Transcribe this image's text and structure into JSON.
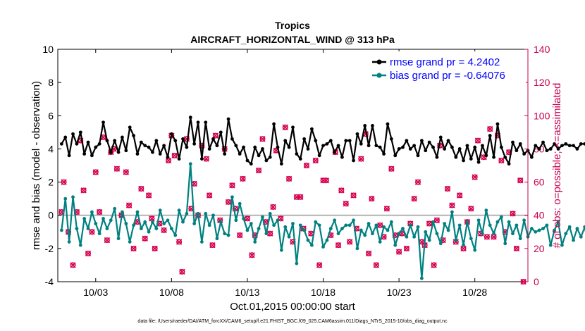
{
  "chart_data": {
    "type": "line",
    "title": "Tropics",
    "subtitle": "AIRCRAFT_HORIZONTAL_WIND @ 313 hPa",
    "xlabel": "Oct.01,2015 00:00:00 start",
    "ylabel": "rmse and bias (model - observation)",
    "y2label": "# of obs: o=possible; ×=assimilated",
    "ylim": [
      -4,
      10
    ],
    "y2lim": [
      0,
      140
    ],
    "xlim": [
      0.5,
      31.5
    ],
    "yticks": [
      "-4",
      "-2",
      "0",
      "2",
      "4",
      "6",
      "8",
      "10"
    ],
    "y2ticks": [
      "0",
      "20",
      "40",
      "60",
      "80",
      "100",
      "120",
      "140"
    ],
    "xticks": [
      {
        "label": "10/03",
        "day": 3
      },
      {
        "label": "10/08",
        "day": 8
      },
      {
        "label": "10/13",
        "day": 13
      },
      {
        "label": "10/18",
        "day": 18
      },
      {
        "label": "10/23",
        "day": 23
      },
      {
        "label": "10/28",
        "day": 28
      }
    ],
    "x_start_day": 0.75,
    "x_step_day": 0.25,
    "zero_line": 0,
    "legend_position": "top-right",
    "colors": {
      "rmse": "#000000",
      "bias": "#008080",
      "obs": "#d6004f",
      "zero": "#b4b4b4",
      "axis_right": "#c8004e"
    },
    "series": [
      {
        "name": "rmse",
        "legend": "rmse grand pr = 4.2402",
        "values": [
          4.3,
          4.7,
          3.6,
          4.9,
          4.3,
          5.0,
          3.7,
          4.4,
          3.6,
          4.1,
          4.3,
          5.6,
          4.5,
          3.8,
          4.5,
          3.8,
          4.7,
          3.9,
          5.3,
          4.8,
          3.7,
          4.4,
          4.2,
          4.1,
          3.8,
          4.5,
          3.7,
          4.2,
          3.5,
          4.9,
          4.5,
          3.4,
          4.6,
          4.1,
          5.9,
          4.3,
          5.6,
          3.4,
          5.6,
          4.0,
          4.6,
          4.2,
          5.0,
          3.7,
          5.8,
          4.6,
          4.2,
          3.7,
          4.1,
          3.3,
          3.1,
          4.1,
          3.6,
          4.0,
          3.3,
          3.5,
          5.5,
          4.1,
          3.1,
          4.5,
          4.1,
          5.3,
          3.7,
          3.4,
          4.6,
          4.0,
          5.2,
          4.5,
          3.6,
          4.2,
          4.3,
          4.5,
          3.8,
          4.2,
          3.5,
          4.5,
          4.5,
          3.3,
          4.9,
          4.3,
          5.4,
          4.2,
          5.4,
          4.2,
          4.1,
          3.7,
          5.5,
          4.6,
          3.6,
          4.0,
          4.1,
          4.5,
          4.0,
          4.2,
          3.6,
          4.5,
          3.9,
          4.4,
          4.1,
          3.5,
          4.7,
          4.0,
          4.5,
          4.1,
          3.5,
          4.0,
          3.3,
          4.2,
          3.4,
          4.1,
          3.2,
          4.2,
          3.6,
          4.8,
          3.5,
          5.5,
          4.1,
          3.5,
          3.1,
          4.4,
          3.9,
          4.3,
          3.7,
          3.9,
          3.5,
          4.2,
          4.0,
          4.4,
          3.9,
          4.0,
          4.3,
          4.0,
          4.2,
          4.3,
          4.2,
          4.2,
          4.0,
          4.3,
          4.3,
          4.1,
          4.3,
          4.1,
          4.1,
          4.4,
          4.0,
          4.1,
          3.9,
          3.7,
          4.1,
          4.0,
          3.7,
          4.5,
          3.0,
          4.5,
          4.1,
          3.4,
          4.7,
          3.6,
          4.6,
          4.0,
          3.7,
          4.2
        ]
      },
      {
        "name": "bias",
        "legend": "bias grand pr = -0.64076",
        "values": [
          -0.9,
          1.0,
          -1.6,
          1.1,
          -0.8,
          -1.8,
          -0.2,
          -0.8,
          0.2,
          -0.5,
          -1.1,
          -0.2,
          -0.8,
          -0.3,
          0.4,
          -1.4,
          0.2,
          -0.5,
          -1.6,
          -0.6,
          0.2,
          -0.8,
          -0.4,
          -1.0,
          -0.4,
          -0.8,
          0.3,
          -0.5,
          -0.3,
          -0.8,
          -1.2,
          0.3,
          -0.4,
          0.1,
          3.1,
          -0.5,
          0.1,
          -1.6,
          0.1,
          -0.6,
          0.0,
          -1.4,
          -0.4,
          -1.1,
          -1.2,
          1.1,
          -0.3,
          0.7,
          -0.2,
          -0.9,
          -0.5,
          -1.6,
          -0.8,
          -0.1,
          -1.1,
          0.1,
          -0.6,
          -0.3,
          -2.1,
          -0.7,
          -1.3,
          -0.5,
          -2.9,
          -0.6,
          -0.9,
          -1.5,
          -1.8,
          -0.4,
          -0.6,
          -1.9,
          -1.5,
          -0.8,
          -0.3,
          -1.1,
          -0.8,
          -0.6,
          -0.6,
          -0.3,
          -2.0,
          -0.9,
          -1.2,
          -0.5,
          -1.1,
          -0.6,
          -1.6,
          -0.7,
          -0.9,
          -0.4,
          -1.8,
          -1.1,
          -0.8,
          -1.3,
          -0.6,
          -1.3,
          -0.7,
          -3.8,
          -1.0,
          -1.5,
          -0.4,
          -1.1,
          -1.7,
          -0.5,
          -0.9,
          0.2,
          -1.5,
          -0.6,
          -1.8,
          -0.4,
          -1.4,
          -2.1,
          -0.3,
          -1.1,
          0.3,
          -0.6,
          -1.1,
          -0.4,
          -0.1,
          -1.7,
          -0.4,
          -1.1,
          -0.6,
          -1.4,
          -0.3,
          -1.3,
          -0.8,
          -1.0,
          -0.9,
          -0.8,
          -0.6,
          -1.8,
          -0.9,
          -0.4,
          -1.8,
          -1.1,
          -0.7,
          -1.5,
          -0.8,
          -1.3,
          -0.7,
          -1.9,
          -1.1,
          -0.7,
          -0.3,
          -1.3,
          -0.8,
          -1.1,
          -0.6,
          -1.5,
          -0.7,
          -0.2,
          -1.3,
          -0.7,
          -1.5,
          -0.9,
          -1.0,
          -0.9,
          -1.2,
          -1.9,
          -0.5,
          -1.3
        ]
      }
    ],
    "obs_possible": [
      [
        0.75,
        42
      ],
      [
        0.9,
        60
      ],
      [
        1.2,
        30
      ],
      [
        1.5,
        10
      ],
      [
        1.75,
        42
      ],
      [
        2.0,
        85
      ],
      [
        2.2,
        55
      ],
      [
        2.5,
        17
      ],
      [
        2.75,
        30
      ],
      [
        3.0,
        66
      ],
      [
        3.25,
        42
      ],
      [
        3.5,
        87
      ],
      [
        3.75,
        25
      ],
      [
        4.0,
        78
      ],
      [
        4.2,
        80
      ],
      [
        4.4,
        68
      ],
      [
        4.7,
        40
      ],
      [
        5.0,
        66
      ],
      [
        5.2,
        46
      ],
      [
        5.5,
        20
      ],
      [
        5.75,
        36
      ],
      [
        6.0,
        56
      ],
      [
        6.25,
        26
      ],
      [
        6.5,
        52
      ],
      [
        6.7,
        38
      ],
      [
        6.9,
        20
      ],
      [
        7.2,
        35
      ],
      [
        7.5,
        31
      ],
      [
        7.8,
        73
      ],
      [
        8.0,
        88
      ],
      [
        8.2,
        76
      ],
      [
        8.5,
        24
      ],
      [
        8.7,
        6
      ],
      [
        9.0,
        86
      ],
      [
        9.3,
        44
      ],
      [
        9.5,
        59
      ],
      [
        9.75,
        40
      ],
      [
        10.0,
        82
      ],
      [
        10.3,
        74
      ],
      [
        10.5,
        52
      ],
      [
        10.7,
        22
      ],
      [
        10.9,
        88
      ],
      [
        11.2,
        37
      ],
      [
        11.5,
        80
      ],
      [
        11.75,
        48
      ],
      [
        12.0,
        58
      ],
      [
        12.2,
        44
      ],
      [
        12.5,
        28
      ],
      [
        12.7,
        62
      ],
      [
        13.0,
        38
      ],
      [
        13.3,
        16
      ],
      [
        13.5,
        28
      ],
      [
        13.75,
        67
      ],
      [
        14.0,
        86
      ],
      [
        14.2,
        36
      ],
      [
        14.5,
        29
      ],
      [
        14.7,
        45
      ],
      [
        14.9,
        79
      ],
      [
        15.2,
        38
      ],
      [
        15.5,
        93
      ],
      [
        15.75,
        62
      ],
      [
        16.0,
        24
      ],
      [
        16.25,
        51
      ],
      [
        16.5,
        51
      ],
      [
        16.7,
        32
      ],
      [
        16.9,
        70
      ],
      [
        17.2,
        29
      ],
      [
        17.5,
        73
      ],
      [
        17.75,
        10
      ],
      [
        18.0,
        61
      ],
      [
        18.2,
        61
      ],
      [
        18.5,
        28
      ],
      [
        18.8,
        78
      ],
      [
        19.0,
        22
      ],
      [
        19.2,
        55
      ],
      [
        19.5,
        47
      ],
      [
        19.75,
        24
      ],
      [
        20.0,
        52
      ],
      [
        20.2,
        32
      ],
      [
        20.5,
        74
      ],
      [
        20.8,
        89
      ],
      [
        21.0,
        17
      ],
      [
        21.2,
        50
      ],
      [
        21.5,
        10
      ],
      [
        21.75,
        34
      ],
      [
        22.0,
        27
      ],
      [
        22.2,
        44
      ],
      [
        22.5,
        68
      ],
      [
        22.75,
        28
      ],
      [
        23.0,
        18
      ],
      [
        23.2,
        29
      ],
      [
        23.5,
        20
      ],
      [
        23.75,
        35
      ],
      [
        24.0,
        50
      ],
      [
        24.25,
        60
      ],
      [
        24.5,
        24
      ],
      [
        24.7,
        22
      ],
      [
        25.0,
        35
      ],
      [
        25.3,
        10
      ],
      [
        25.5,
        37
      ],
      [
        25.7,
        82
      ],
      [
        25.9,
        25
      ],
      [
        26.2,
        56
      ],
      [
        26.5,
        46
      ],
      [
        26.75,
        24
      ],
      [
        27.0,
        52
      ],
      [
        27.25,
        20
      ],
      [
        27.5,
        36
      ],
      [
        27.75,
        44
      ],
      [
        28.0,
        63
      ],
      [
        28.2,
        85
      ],
      [
        28.4,
        29
      ],
      [
        28.6,
        75
      ],
      [
        28.8,
        27
      ],
      [
        29.0,
        92
      ],
      [
        29.25,
        27
      ],
      [
        29.5,
        88
      ],
      [
        29.75,
        73
      ],
      [
        30.0,
        30
      ],
      [
        30.25,
        78
      ],
      [
        30.5,
        41
      ],
      [
        30.75,
        20
      ],
      [
        31.0,
        61
      ],
      [
        31.2,
        0
      ]
    ],
    "annotation": "data file: /Users/raeder/DAI/ATM_forcXX/CAM6_setup/f.e21.FHIST_BGC.f09_025.CAM6assim.011/Diags_NTrS_2015-10/obs_diag_output.nc"
  }
}
